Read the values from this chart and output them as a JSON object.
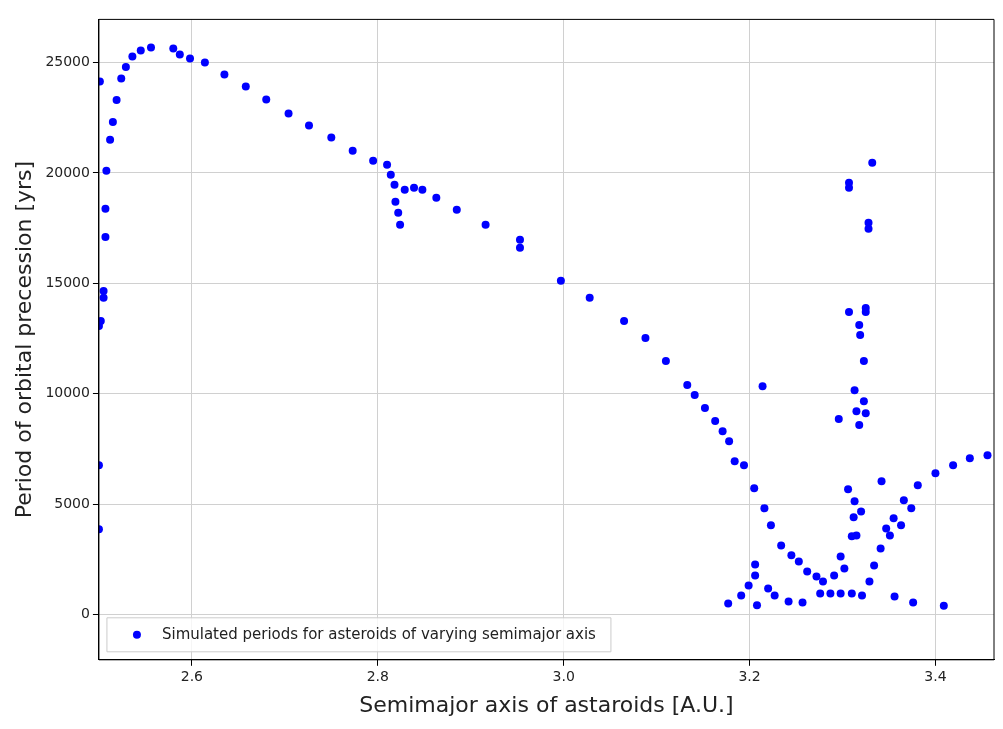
{
  "chart_data": {
    "type": "scatter",
    "xlabel": "Semimajor axis of astaroids [A.U.]",
    "ylabel": "Period of orbital precession [yrs]",
    "xlim": [
      2.5,
      3.463
    ],
    "ylim": [
      -2050,
      26950
    ],
    "xticks": [
      2.6,
      2.8,
      {
        "value": 3,
        "label": "3.0"
      },
      3.2,
      3.4
    ],
    "yticks": [
      0,
      5000,
      10000,
      15000,
      20000,
      25000
    ],
    "grid": true,
    "legend": "bottom",
    "marker": "circle",
    "series": [
      {
        "name": "Simulated periods for asteroids of varying semimajor axis",
        "color": "#0000ff",
        "x": [
          2.501,
          2.508,
          2.507,
          2.507,
          2.505,
          2.505,
          2.502,
          2.5,
          2.5,
          2.5,
          2.512,
          2.515,
          2.519,
          2.524,
          2.529,
          2.536,
          2.545,
          2.556,
          2.58,
          2.587,
          2.598,
          2.614,
          2.635,
          2.658,
          2.68,
          2.704,
          2.726,
          2.75,
          2.773,
          2.795,
          2.81,
          2.814,
          2.818,
          2.819,
          2.822,
          2.824,
          2.829,
          2.839,
          2.848,
          2.863,
          2.885,
          2.916,
          2.953,
          2.953,
          2.997,
          3.028,
          3.065,
          3.088,
          3.11,
          3.133,
          3.141,
          3.152,
          3.163,
          3.171,
          3.178,
          3.184,
          3.194,
          3.205,
          3.216,
          3.223,
          3.234,
          3.245,
          3.253,
          3.262,
          3.272,
          3.279,
          3.276,
          3.287,
          3.298,
          3.31,
          3.291,
          3.302,
          3.298,
          3.177,
          3.191,
          3.199,
          3.206,
          3.206,
          3.22,
          3.227,
          3.242,
          3.257,
          3.321,
          3.329,
          3.334,
          3.341,
          3.347,
          3.355,
          3.366,
          3.381,
          3.4,
          3.419,
          3.437,
          3.456,
          3.351,
          3.363,
          3.374,
          3.318,
          3.319,
          3.323,
          3.313,
          3.323,
          3.315,
          3.325,
          3.318,
          3.296,
          3.342,
          3.306,
          3.313,
          3.32,
          3.312,
          3.31,
          3.315,
          3.356,
          3.376,
          3.214,
          3.307,
          3.307,
          3.328,
          3.325,
          3.332,
          3.328,
          3.307,
          3.325,
          3.208,
          3.409
        ],
        "values": [
          24140,
          20100,
          18380,
          17100,
          14650,
          14340,
          13290,
          13070,
          6760,
          3860,
          21500,
          22300,
          23300,
          24270,
          24800,
          25270,
          25540,
          25680,
          25630,
          25360,
          25180,
          25000,
          24450,
          23910,
          23320,
          22690,
          22140,
          21600,
          21000,
          20550,
          20370,
          19920,
          19460,
          18690,
          18190,
          17650,
          19240,
          19330,
          19240,
          18870,
          18330,
          17650,
          16610,
          16970,
          15110,
          14340,
          13290,
          12520,
          11480,
          10390,
          9940,
          9350,
          8760,
          8300,
          7850,
          6940,
          6760,
          5720,
          4810,
          4040,
          3130,
          2680,
          2400,
          1950,
          1720,
          1500,
          950,
          950,
          950,
          950,
          1770,
          2090,
          2630,
          500,
          860,
          1320,
          1770,
          2270,
          1180,
          860,
          590,
          540,
          860,
          1500,
          2220,
          2990,
          3900,
          4360,
          5170,
          5850,
          6400,
          6760,
          7080,
          7210,
          3580,
          4040,
          4810,
          13110,
          12660,
          11480,
          10160,
          9660,
          9210,
          9120,
          8580,
          8850,
          6030,
          5670,
          5130,
          4670,
          4400,
          3540,
          3580,
          820,
          540,
          10340,
          19550,
          19330,
          17740,
          13880,
          20460,
          17470,
          13700,
          13700,
          420,
          400
        ]
      }
    ]
  }
}
